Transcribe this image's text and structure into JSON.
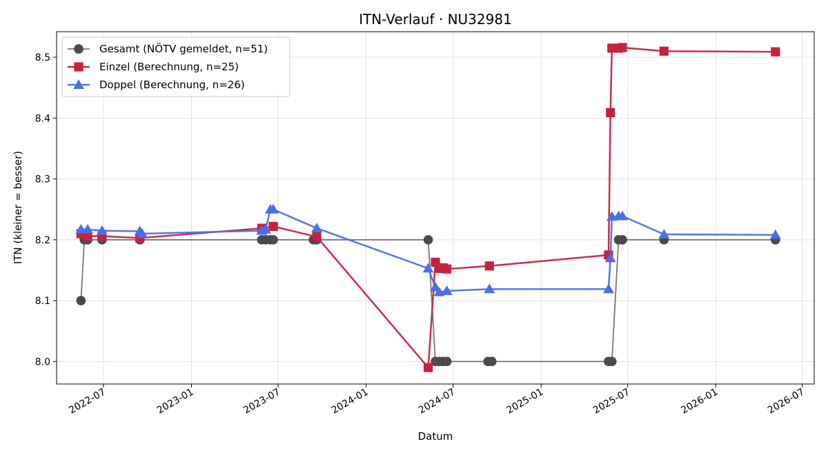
{
  "chart_data": {
    "type": "line",
    "title": "ITN-Verlauf · NU32981",
    "xlabel": "Datum",
    "ylabel": "ITN  (kleiner = besser)",
    "x_type": "date",
    "xlim": [
      "2022-03-25",
      "2026-07-26"
    ],
    "ylim": [
      7.963,
      8.542
    ],
    "x_ticks": [
      "2022-07-01",
      "2023-01-01",
      "2023-07-01",
      "2024-01-01",
      "2024-07-01",
      "2025-01-01",
      "2025-07-01",
      "2026-01-01",
      "2026-07-01"
    ],
    "x_tick_labels": [
      "2022-07",
      "2023-01",
      "2023-07",
      "2024-01",
      "2024-07",
      "2025-01",
      "2025-07",
      "2026-01",
      "2026-07"
    ],
    "y_ticks": [
      8.0,
      8.1,
      8.2,
      8.3,
      8.4,
      8.5
    ],
    "y_tick_labels": [
      "8.0",
      "8.1",
      "8.2",
      "8.3",
      "8.4",
      "8.5"
    ],
    "grid": true,
    "legend_position": "top-left",
    "series": [
      {
        "name": "Gesamt (NÖTV gemeldet, n=51)",
        "color": "#4a4a4a",
        "marker": "circle",
        "points": [
          {
            "x": "2022-05-15",
            "y": 8.1
          },
          {
            "x": "2022-05-22",
            "y": 8.2
          },
          {
            "x": "2022-05-29",
            "y": 8.2
          },
          {
            "x": "2022-06-28",
            "y": 8.2
          },
          {
            "x": "2022-09-15",
            "y": 8.2
          },
          {
            "x": "2023-05-28",
            "y": 8.2
          },
          {
            "x": "2023-06-05",
            "y": 8.2
          },
          {
            "x": "2023-06-15",
            "y": 8.2
          },
          {
            "x": "2023-06-21",
            "y": 8.2
          },
          {
            "x": "2023-09-13",
            "y": 8.2
          },
          {
            "x": "2023-09-20",
            "y": 8.2
          },
          {
            "x": "2024-05-10",
            "y": 8.2
          },
          {
            "x": "2024-05-25",
            "y": 8.0
          },
          {
            "x": "2024-06-02",
            "y": 8.0
          },
          {
            "x": "2024-06-10",
            "y": 8.0
          },
          {
            "x": "2024-06-18",
            "y": 8.0
          },
          {
            "x": "2024-09-12",
            "y": 8.0
          },
          {
            "x": "2024-09-20",
            "y": 8.0
          },
          {
            "x": "2025-05-22",
            "y": 8.0
          },
          {
            "x": "2025-05-29",
            "y": 8.0
          },
          {
            "x": "2025-06-12",
            "y": 8.2
          },
          {
            "x": "2025-06-20",
            "y": 8.2
          },
          {
            "x": "2025-09-15",
            "y": 8.2
          },
          {
            "x": "2026-05-06",
            "y": 8.2
          }
        ]
      },
      {
        "name": "Einzel (Berechnung, n=25)",
        "color": "#c8213f",
        "marker": "square",
        "points": [
          {
            "x": "2022-05-15",
            "y": 8.21
          },
          {
            "x": "2022-05-29",
            "y": 8.206
          },
          {
            "x": "2022-06-28",
            "y": 8.206
          },
          {
            "x": "2022-09-15",
            "y": 8.203
          },
          {
            "x": "2023-05-28",
            "y": 8.219
          },
          {
            "x": "2023-06-21",
            "y": 8.222
          },
          {
            "x": "2023-09-20",
            "y": 8.205
          },
          {
            "x": "2024-05-10",
            "y": 7.99
          },
          {
            "x": "2024-05-25",
            "y": 8.163
          },
          {
            "x": "2024-06-02",
            "y": 8.153
          },
          {
            "x": "2024-06-10",
            "y": 8.154
          },
          {
            "x": "2024-06-18",
            "y": 8.152
          },
          {
            "x": "2024-09-15",
            "y": 8.157
          },
          {
            "x": "2025-05-22",
            "y": 8.175
          },
          {
            "x": "2025-05-26",
            "y": 8.409
          },
          {
            "x": "2025-05-29",
            "y": 8.515
          },
          {
            "x": "2025-06-12",
            "y": 8.515
          },
          {
            "x": "2025-06-20",
            "y": 8.516
          },
          {
            "x": "2025-09-15",
            "y": 8.51
          },
          {
            "x": "2026-05-06",
            "y": 8.509
          }
        ]
      },
      {
        "name": "Doppel (Berechnung, n=26)",
        "color": "#4a6ee8",
        "marker": "triangle",
        "points": [
          {
            "x": "2022-05-15",
            "y": 8.217
          },
          {
            "x": "2022-05-29",
            "y": 8.217
          },
          {
            "x": "2022-06-28",
            "y": 8.215
          },
          {
            "x": "2022-09-15",
            "y": 8.214
          },
          {
            "x": "2022-09-20",
            "y": 8.21
          },
          {
            "x": "2023-05-28",
            "y": 8.215
          },
          {
            "x": "2023-06-05",
            "y": 8.217
          },
          {
            "x": "2023-06-15",
            "y": 8.25
          },
          {
            "x": "2023-06-21",
            "y": 8.25
          },
          {
            "x": "2023-09-20",
            "y": 8.219
          },
          {
            "x": "2024-05-10",
            "y": 8.153
          },
          {
            "x": "2024-05-25",
            "y": 8.122
          },
          {
            "x": "2024-06-02",
            "y": 8.114
          },
          {
            "x": "2024-06-18",
            "y": 8.116
          },
          {
            "x": "2024-09-15",
            "y": 8.119
          },
          {
            "x": "2025-05-22",
            "y": 8.119
          },
          {
            "x": "2025-05-26",
            "y": 8.17
          },
          {
            "x": "2025-05-29",
            "y": 8.238
          },
          {
            "x": "2025-06-12",
            "y": 8.239
          },
          {
            "x": "2025-06-20",
            "y": 8.239
          },
          {
            "x": "2025-09-15",
            "y": 8.209
          },
          {
            "x": "2026-05-06",
            "y": 8.208
          }
        ]
      }
    ]
  }
}
